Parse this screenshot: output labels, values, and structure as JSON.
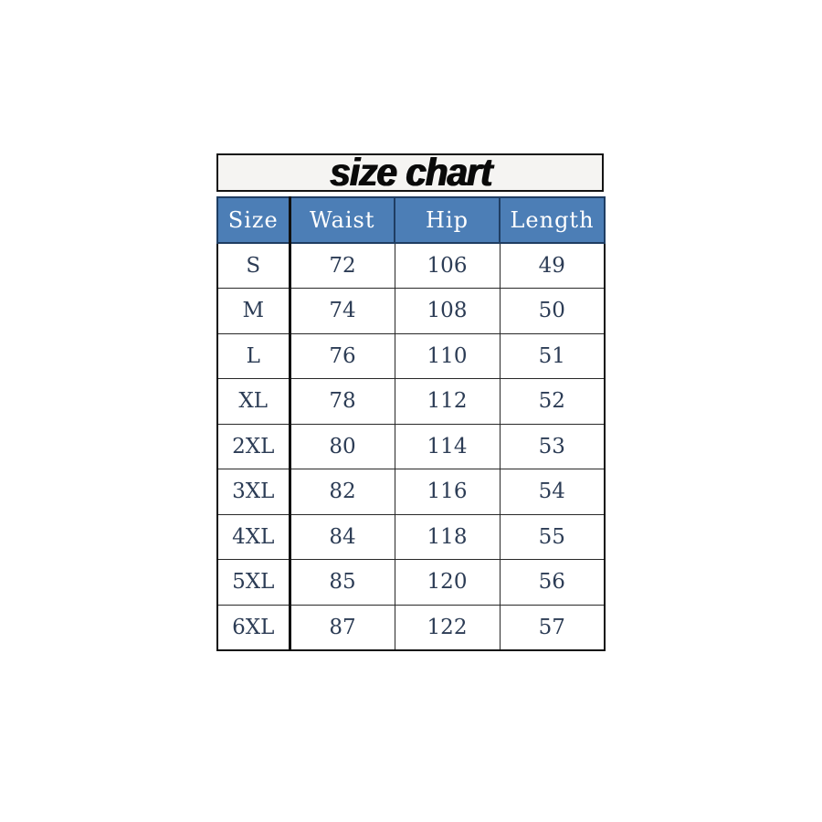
{
  "title": "size chart",
  "chart_data": {
    "type": "table",
    "title": "size chart",
    "columns": [
      "Size",
      "Waist",
      "Hip",
      "Length"
    ],
    "rows": [
      [
        "S",
        "72",
        "106",
        "49"
      ],
      [
        "M",
        "74",
        "108",
        "50"
      ],
      [
        "L",
        "76",
        "110",
        "51"
      ],
      [
        "XL",
        "78",
        "112",
        "52"
      ],
      [
        "2XL",
        "80",
        "114",
        "53"
      ],
      [
        "3XL",
        "82",
        "116",
        "54"
      ],
      [
        "4XL",
        "84",
        "118",
        "55"
      ],
      [
        "5XL",
        "85",
        "120",
        "56"
      ],
      [
        "6XL",
        "87",
        "122",
        "57"
      ]
    ]
  },
  "colors": {
    "header_bg": "#4c7eb6",
    "header_text": "#ffffff",
    "header_border": "#1f3d62",
    "cell_text": "#2c3c55",
    "grid": "#282828",
    "title_bg": "#f5f4f2"
  }
}
